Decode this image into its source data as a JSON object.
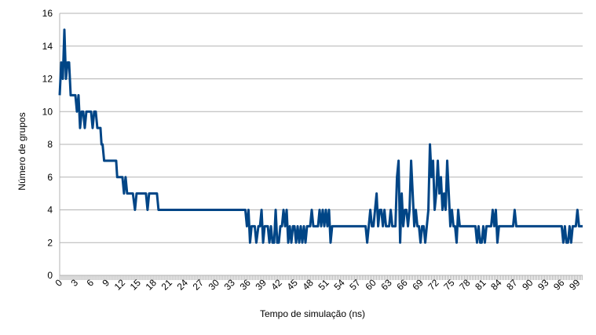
{
  "chart_data": {
    "type": "line",
    "title": "",
    "xlabel": "Tempo de simulação (ns)",
    "ylabel": "Número de grupos",
    "xlim": [
      0,
      100
    ],
    "ylim": [
      0,
      16
    ],
    "y_ticks": [
      0,
      2,
      4,
      6,
      8,
      10,
      12,
      14,
      16
    ],
    "x_tick_labels": [
      0,
      3,
      6,
      9,
      12,
      15,
      18,
      21,
      24,
      27,
      30,
      33,
      36,
      39,
      42,
      45,
      48,
      51,
      54,
      57,
      60,
      63,
      66,
      69,
      72,
      75,
      78,
      81,
      84,
      87,
      90,
      93,
      96,
      99
    ],
    "grid": "horizontal",
    "legend": "none",
    "line_color": "#004586",
    "series": [
      {
        "points": [
          [
            0,
            11
          ],
          [
            0.3,
            13
          ],
          [
            0.6,
            12
          ],
          [
            0.9,
            15
          ],
          [
            1.2,
            12
          ],
          [
            1.5,
            13
          ],
          [
            1.8,
            13
          ],
          [
            2.1,
            11
          ],
          [
            2.7,
            11
          ],
          [
            3.0,
            11
          ],
          [
            3.3,
            10
          ],
          [
            3.6,
            11
          ],
          [
            3.9,
            9
          ],
          [
            4.2,
            10
          ],
          [
            4.5,
            10
          ],
          [
            4.8,
            9
          ],
          [
            5.1,
            10
          ],
          [
            5.4,
            10
          ],
          [
            5.7,
            10
          ],
          [
            6.0,
            10
          ],
          [
            6.3,
            9
          ],
          [
            6.6,
            10
          ],
          [
            6.9,
            10
          ],
          [
            7.2,
            9
          ],
          [
            7.8,
            9
          ],
          [
            8.0,
            8
          ],
          [
            8.2,
            8
          ],
          [
            8.5,
            7
          ],
          [
            9,
            7
          ],
          [
            10,
            7
          ],
          [
            10.8,
            7
          ],
          [
            11,
            6
          ],
          [
            12,
            6
          ],
          [
            12.3,
            5
          ],
          [
            12.6,
            6
          ],
          [
            12.9,
            5
          ],
          [
            13.5,
            5
          ],
          [
            14,
            5
          ],
          [
            14.4,
            4
          ],
          [
            14.7,
            5
          ],
          [
            15,
            5
          ],
          [
            16,
            5
          ],
          [
            16.5,
            5
          ],
          [
            16.8,
            4
          ],
          [
            17.1,
            5
          ],
          [
            18,
            5
          ],
          [
            18.6,
            5
          ],
          [
            18.9,
            4
          ],
          [
            20,
            4
          ],
          [
            25,
            4
          ],
          [
            30,
            4
          ],
          [
            33,
            4
          ],
          [
            35.5,
            4
          ],
          [
            35.8,
            3
          ],
          [
            36.1,
            4
          ],
          [
            36.4,
            2
          ],
          [
            36.7,
            3
          ],
          [
            37,
            3
          ],
          [
            37.3,
            3
          ],
          [
            37.6,
            2
          ],
          [
            38.0,
            3
          ],
          [
            38.3,
            3
          ],
          [
            38.6,
            4
          ],
          [
            38.9,
            2
          ],
          [
            39.2,
            3
          ],
          [
            39.5,
            3
          ],
          [
            39.8,
            3
          ],
          [
            40.1,
            2
          ],
          [
            40.4,
            3
          ],
          [
            40.7,
            2
          ],
          [
            41.0,
            2
          ],
          [
            41.3,
            4
          ],
          [
            41.6,
            2
          ],
          [
            41.9,
            2
          ],
          [
            42.2,
            3
          ],
          [
            42.5,
            3
          ],
          [
            42.8,
            4
          ],
          [
            43.1,
            3
          ],
          [
            43.4,
            4
          ],
          [
            43.7,
            2
          ],
          [
            44.0,
            3
          ],
          [
            44.3,
            2
          ],
          [
            44.6,
            3
          ],
          [
            44.9,
            3
          ],
          [
            45.2,
            2
          ],
          [
            45.5,
            3
          ],
          [
            45.8,
            2
          ],
          [
            46.1,
            3
          ],
          [
            46.4,
            2
          ],
          [
            46.7,
            3
          ],
          [
            47.0,
            2
          ],
          [
            47.3,
            3
          ],
          [
            47.6,
            3
          ],
          [
            47.9,
            3
          ],
          [
            48.2,
            4
          ],
          [
            48.5,
            3
          ],
          [
            48.8,
            3
          ],
          [
            49.1,
            3
          ],
          [
            49.4,
            3
          ],
          [
            49.7,
            4
          ],
          [
            50.0,
            3
          ],
          [
            50.3,
            4
          ],
          [
            50.6,
            3
          ],
          [
            50.9,
            4
          ],
          [
            51.2,
            3
          ],
          [
            51.5,
            4
          ],
          [
            51.8,
            2
          ],
          [
            52.1,
            3
          ],
          [
            52.4,
            3
          ],
          [
            53,
            3
          ],
          [
            55,
            3
          ],
          [
            57,
            3
          ],
          [
            58.5,
            3
          ],
          [
            58.8,
            2
          ],
          [
            59.1,
            3
          ],
          [
            59.4,
            4
          ],
          [
            59.7,
            3
          ],
          [
            60.0,
            3
          ],
          [
            60.3,
            4
          ],
          [
            60.6,
            5
          ],
          [
            60.9,
            3
          ],
          [
            61.2,
            4
          ],
          [
            61.5,
            4
          ],
          [
            61.8,
            3
          ],
          [
            62.1,
            4
          ],
          [
            62.4,
            3
          ],
          [
            62.7,
            3
          ],
          [
            63.0,
            3
          ],
          [
            63.3,
            4
          ],
          [
            63.6,
            3
          ],
          [
            63.9,
            3
          ],
          [
            64.2,
            3
          ],
          [
            64.5,
            6
          ],
          [
            64.8,
            7
          ],
          [
            65.1,
            2
          ],
          [
            65.4,
            5
          ],
          [
            65.7,
            3
          ],
          [
            66.0,
            4
          ],
          [
            66.3,
            4
          ],
          [
            66.6,
            3
          ],
          [
            66.9,
            4
          ],
          [
            67.2,
            7
          ],
          [
            67.5,
            5
          ],
          [
            67.8,
            3
          ],
          [
            68.1,
            4
          ],
          [
            68.4,
            3
          ],
          [
            68.7,
            3
          ],
          [
            69.0,
            2
          ],
          [
            69.3,
            3
          ],
          [
            69.6,
            3
          ],
          [
            69.9,
            2
          ],
          [
            70.2,
            3
          ],
          [
            70.5,
            4
          ],
          [
            70.8,
            8
          ],
          [
            71.1,
            6
          ],
          [
            71.4,
            7
          ],
          [
            71.7,
            4
          ],
          [
            72.0,
            5
          ],
          [
            72.3,
            7
          ],
          [
            72.6,
            5
          ],
          [
            72.9,
            6
          ],
          [
            73.2,
            4
          ],
          [
            73.5,
            5
          ],
          [
            73.8,
            4
          ],
          [
            74.1,
            7
          ],
          [
            74.4,
            5
          ],
          [
            74.7,
            3
          ],
          [
            75.0,
            4
          ],
          [
            75.3,
            3
          ],
          [
            75.6,
            3
          ],
          [
            75.9,
            2
          ],
          [
            76.2,
            4
          ],
          [
            76.5,
            3
          ],
          [
            76.8,
            3
          ],
          [
            77.1,
            3
          ],
          [
            77.4,
            3
          ],
          [
            77.7,
            3
          ],
          [
            78,
            3
          ],
          [
            79,
            3
          ],
          [
            79.5,
            3
          ],
          [
            79.8,
            2
          ],
          [
            80.1,
            3
          ],
          [
            80.4,
            2
          ],
          [
            80.7,
            2
          ],
          [
            81.0,
            3
          ],
          [
            81.3,
            2
          ],
          [
            81.6,
            3
          ],
          [
            81.9,
            3
          ],
          [
            82.2,
            3
          ],
          [
            82.5,
            3
          ],
          [
            82.8,
            4
          ],
          [
            83.1,
            3
          ],
          [
            83.4,
            4
          ],
          [
            83.7,
            2
          ],
          [
            84.0,
            3
          ],
          [
            84.3,
            3
          ],
          [
            84.6,
            3
          ],
          [
            85.0,
            3
          ],
          [
            86,
            3
          ],
          [
            86.7,
            3
          ],
          [
            87.0,
            4
          ],
          [
            87.3,
            3
          ],
          [
            88,
            3
          ],
          [
            90,
            3
          ],
          [
            93,
            3
          ],
          [
            95,
            3
          ],
          [
            96,
            3
          ],
          [
            96.3,
            2
          ],
          [
            96.6,
            3
          ],
          [
            96.9,
            2
          ],
          [
            97.2,
            2
          ],
          [
            97.5,
            3
          ],
          [
            97.8,
            2
          ],
          [
            98.1,
            3
          ],
          [
            98.4,
            3
          ],
          [
            98.7,
            3
          ],
          [
            99.0,
            4
          ],
          [
            99.3,
            3
          ],
          [
            99.6,
            3
          ],
          [
            100,
            3
          ]
        ]
      }
    ]
  }
}
